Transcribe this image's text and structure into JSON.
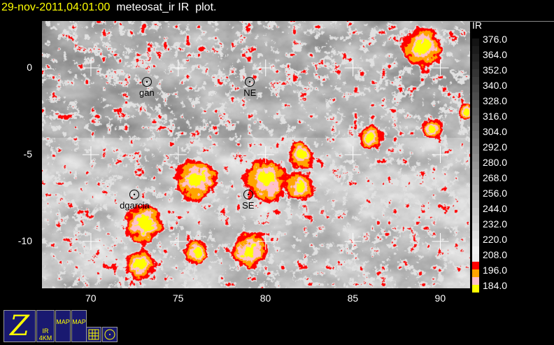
{
  "title": {
    "datetime": "29-nov-2011,04:01:00",
    "text": "  meteosat_ir IR  plot."
  },
  "map": {
    "lon_range": [
      67.2,
      91.7
    ],
    "lat_range": [
      -12.7,
      2.7
    ],
    "lon_ticks": [
      "70",
      "75",
      "80",
      "85",
      "90"
    ],
    "lat_ticks": [
      "0",
      "-5",
      "-10"
    ],
    "stations": [
      {
        "name": "gan",
        "lon": 73.2,
        "lat": -0.8
      },
      {
        "name": "NE",
        "lon": 79.1,
        "lat": -0.8
      },
      {
        "name": "dgarcia",
        "lon": 72.5,
        "lat": -7.3
      },
      {
        "name": "SE",
        "lon": 79.0,
        "lat": -7.3
      }
    ]
  },
  "colorbar": {
    "label": "IR",
    "ticks": [
      "376.0",
      "364.0",
      "352.0",
      "340.0",
      "328.0",
      "316.0",
      "304.0",
      "292.0",
      "280.0",
      "268.0",
      "256.0",
      "244.0",
      "232.0",
      "220.0",
      "208.0",
      "196.0",
      "184.0"
    ],
    "threshold_colors": [
      "#ff0000",
      "#ffa500",
      "#ffc0cb",
      "#ffff00"
    ]
  },
  "toolbar": {
    "buttons": [
      {
        "name": "zoom",
        "glyph": "Z"
      },
      {
        "name": "ir-4km",
        "label": "IR 4KM"
      },
      {
        "name": "map1",
        "label": "MAP"
      },
      {
        "name": "map2",
        "label": "MAP"
      },
      {
        "name": "grid"
      },
      {
        "name": "station"
      }
    ]
  }
}
